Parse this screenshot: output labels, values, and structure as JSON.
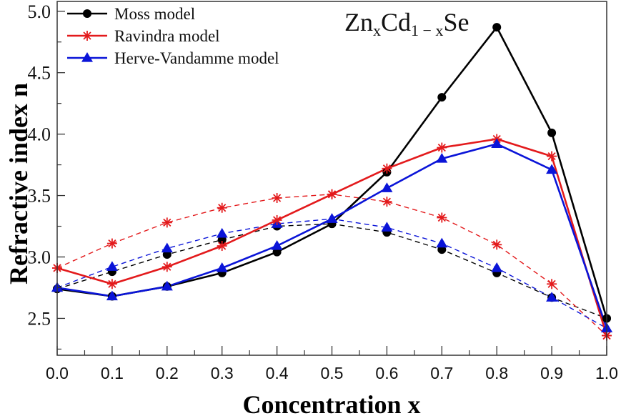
{
  "chart_data": {
    "type": "line",
    "title": "ZnxCd1-xSe",
    "title_parts": {
      "base1": "Zn",
      "sub1": "x",
      "base2": "Cd",
      "sub2": "1 − x",
      "base3": "Se"
    },
    "xlabel": "Concentration x",
    "ylabel": "Refractive index n",
    "xlim": [
      0.0,
      1.0
    ],
    "ylim": [
      2.2,
      5.08
    ],
    "x_ticks": [
      "0.0",
      "0.1",
      "0.2",
      "0.3",
      "0.4",
      "0.5",
      "0.6",
      "0.7",
      "0.8",
      "0.9",
      "1.0"
    ],
    "y_ticks": [
      "2.5",
      "3.0",
      "3.5",
      "4.0",
      "4.5",
      "5.0"
    ],
    "grid": false,
    "legend_position": "top-left",
    "x": [
      0.0,
      0.1,
      0.2,
      0.3,
      0.4,
      0.5,
      0.6,
      0.7,
      0.8,
      0.9,
      1.0
    ],
    "series": [
      {
        "name": "Moss model",
        "color": "#000000",
        "marker": "circle",
        "linestyle": "solid",
        "values": [
          2.74,
          2.68,
          2.76,
          2.87,
          3.04,
          3.27,
          3.69,
          4.3,
          4.87,
          4.01,
          2.5
        ]
      },
      {
        "name": "Ravindra model",
        "color": "#e31a1c",
        "marker": "asterisk",
        "linestyle": "solid",
        "values": [
          2.91,
          2.78,
          2.92,
          3.09,
          3.3,
          3.51,
          3.72,
          3.89,
          3.96,
          3.82,
          2.36
        ]
      },
      {
        "name": "Herve-Vandamme model",
        "color": "#0a14d8",
        "marker": "triangle",
        "linestyle": "solid",
        "values": [
          2.75,
          2.68,
          2.76,
          2.91,
          3.09,
          3.31,
          3.56,
          3.8,
          3.92,
          3.71,
          2.42
        ]
      },
      {
        "name": "Moss model (dashed)",
        "color": "#000000",
        "marker": "circle",
        "linestyle": "dashed",
        "values": [
          2.74,
          2.88,
          3.02,
          3.14,
          3.25,
          3.27,
          3.2,
          3.06,
          2.87,
          2.67,
          2.5
        ]
      },
      {
        "name": "Ravindra model (dashed)",
        "color": "#e31a1c",
        "marker": "asterisk",
        "linestyle": "dashed",
        "values": [
          2.91,
          3.11,
          3.28,
          3.4,
          3.48,
          3.51,
          3.45,
          3.32,
          3.1,
          2.78,
          2.36
        ]
      },
      {
        "name": "Herve-Vandamme model (dashed)",
        "color": "#0a14d8",
        "marker": "triangle",
        "linestyle": "dashed",
        "values": [
          2.75,
          2.92,
          3.07,
          3.19,
          3.27,
          3.31,
          3.24,
          3.11,
          2.91,
          2.67,
          2.42
        ]
      }
    ],
    "legend": [
      {
        "label": "Moss model",
        "color": "#000000",
        "marker": "circle"
      },
      {
        "label": "Ravindra model",
        "color": "#e31a1c",
        "marker": "asterisk"
      },
      {
        "label": "Herve-Vandamme model",
        "color": "#0a14d8",
        "marker": "triangle"
      }
    ]
  }
}
